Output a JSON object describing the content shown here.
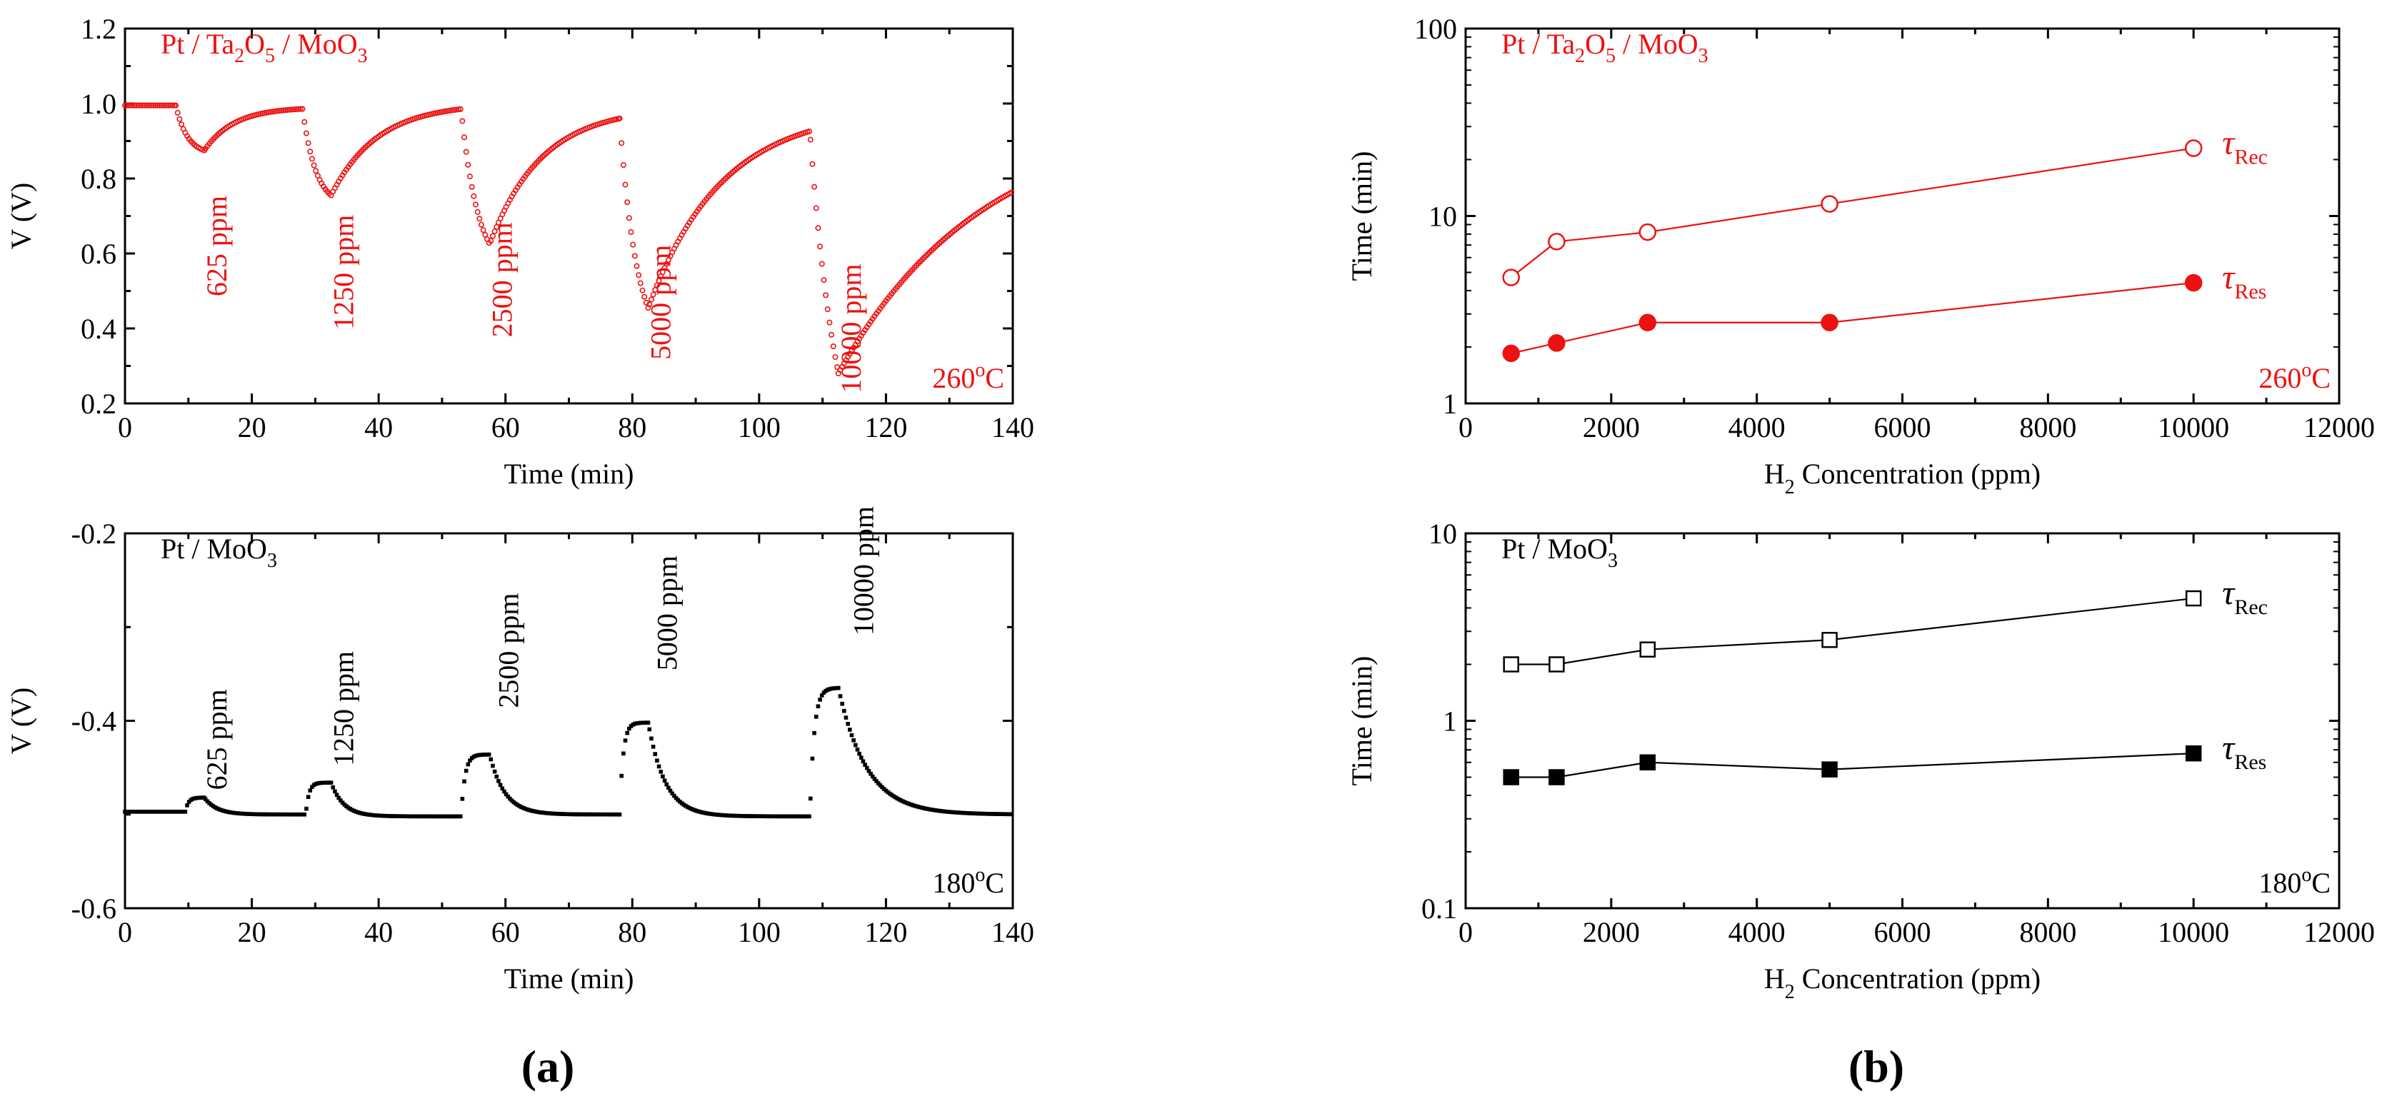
{
  "figure": {
    "label_a": "a",
    "label_b": "b"
  },
  "colors": {
    "red": "#ee1111",
    "black": "#000000"
  },
  "chart_data": [
    {
      "id": "a_top",
      "type": "scatter",
      "title_parts": [
        "Pt / Ta",
        "2",
        "O",
        "5",
        " / MoO",
        "3"
      ],
      "xlabel": "Time (min)",
      "ylabel": "V (V)",
      "xlim": [
        0,
        140
      ],
      "ylim": [
        0.2,
        1.2
      ],
      "xticks": [
        0,
        20,
        40,
        60,
        80,
        100,
        120,
        140
      ],
      "yticks": [
        0.2,
        0.4,
        0.6,
        0.8,
        1.0,
        1.2
      ],
      "ytick_labels": [
        "0.2",
        "0.4",
        "0.6",
        "0.8",
        "1.0",
        "1.2"
      ],
      "temperature": "260",
      "temperature_unit": "C",
      "deg": "o",
      "color": "red",
      "base_start": 0.995,
      "pulses": [
        {
          "label": "625 ppm",
          "t_on": 8,
          "t_off": 12.5,
          "v_min": 0.875,
          "v_base": 0.99,
          "tau_res": 1.85,
          "tau_rec": 4.7,
          "label_x": 16,
          "label_y": 0.62
        },
        {
          "label": "1250 ppm",
          "t_on": 28,
          "t_off": 32.5,
          "v_min": 0.755,
          "v_base": 1.0,
          "tau_res": 2.1,
          "tau_rec": 7.3,
          "label_x": 36,
          "label_y": 0.55
        },
        {
          "label": "2500 ppm",
          "t_on": 53,
          "t_off": 57.5,
          "v_min": 0.625,
          "v_base": 0.99,
          "tau_res": 2.7,
          "tau_rec": 8.2,
          "label_x": 61,
          "label_y": 0.53
        },
        {
          "label": "5000 ppm",
          "t_on": 78,
          "t_off": 82.5,
          "v_min": 0.455,
          "v_base": 0.985,
          "tau_res": 2.7,
          "tau_rec": 11.6,
          "label_x": 86,
          "label_y": 0.47
        },
        {
          "label": "10000 ppm",
          "t_on": 108,
          "t_off": 112.5,
          "v_min": 0.28,
          "v_base": 0.975,
          "tau_res": 4.4,
          "tau_rec": 23,
          "label_x": 116,
          "label_y": 0.4
        }
      ]
    },
    {
      "id": "a_bottom",
      "type": "scatter",
      "title_parts": [
        "Pt / MoO",
        "3"
      ],
      "xlabel": "Time (min)",
      "ylabel": "V (V)",
      "xlim": [
        0,
        140
      ],
      "ylim": [
        -0.6,
        -0.2
      ],
      "xticks": [
        0,
        20,
        40,
        60,
        80,
        100,
        120,
        140
      ],
      "yticks": [
        -0.6,
        -0.4,
        -0.2
      ],
      "ytick_labels": [
        "-0.6",
        "-0.4",
        "-0.2"
      ],
      "temperature": "180",
      "temperature_unit": "C",
      "deg": "o",
      "color": "black",
      "base_start": -0.497,
      "pulses": [
        {
          "label": "625 ppm",
          "t_on": 9.5,
          "t_off": 12.5,
          "v_max": -0.482,
          "v_base": -0.5,
          "tau_res": 0.5,
          "tau_rec": 2,
          "label_x": 16,
          "label_y": -0.42
        },
        {
          "label": "1250 ppm",
          "t_on": 28.5,
          "t_off": 32.5,
          "v_max": -0.466,
          "v_base": -0.502,
          "tau_res": 0.5,
          "tau_rec": 2,
          "label_x": 36,
          "label_y": -0.387
        },
        {
          "label": "2500 ppm",
          "t_on": 53,
          "t_off": 57.5,
          "v_max": -0.436,
          "v_base": -0.5,
          "tau_res": 0.6,
          "tau_rec": 2.4,
          "label_x": 62,
          "label_y": -0.325
        },
        {
          "label": "5000 ppm",
          "t_on": 78,
          "t_off": 82.5,
          "v_max": -0.402,
          "v_base": -0.502,
          "tau_res": 0.55,
          "tau_rec": 2.7,
          "label_x": 87,
          "label_y": -0.285
        },
        {
          "label": "10000 ppm",
          "t_on": 108,
          "t_off": 112.5,
          "v_max": -0.365,
          "v_base": -0.5,
          "tau_res": 0.67,
          "tau_rec": 4.5,
          "label_x": 118,
          "label_y": -0.24
        }
      ]
    },
    {
      "id": "b_top",
      "type": "line",
      "yscale": "log",
      "title_parts": [
        "Pt / Ta",
        "2",
        "O",
        "5",
        " / MoO",
        "3"
      ],
      "xlabel_parts": [
        "H",
        "2",
        " Concentration (ppm)"
      ],
      "ylabel": "Time (min)",
      "xlim": [
        0,
        12000
      ],
      "ylim": [
        1,
        100
      ],
      "xticks": [
        0,
        2000,
        4000,
        6000,
        8000,
        10000,
        12000
      ],
      "yticks": [
        1,
        10,
        100
      ],
      "ytick_labels": [
        "1",
        "10",
        "100"
      ],
      "temperature": "260",
      "temperature_unit": "C",
      "deg": "o",
      "color": "red",
      "marker": "circle",
      "x": [
        625,
        1250,
        2500,
        5000,
        10000
      ],
      "series": [
        {
          "name": "τ",
          "sub": "Rec",
          "filled": false,
          "values": [
            4.7,
            7.3,
            8.2,
            11.6,
            23
          ]
        },
        {
          "name": "τ",
          "sub": "Res",
          "filled": true,
          "values": [
            1.85,
            2.1,
            2.7,
            2.7,
            4.4
          ]
        }
      ]
    },
    {
      "id": "b_bottom",
      "type": "line",
      "yscale": "log",
      "title_parts": [
        "Pt / MoO",
        "3"
      ],
      "xlabel_parts": [
        "H",
        "2",
        " Concentration (ppm)"
      ],
      "ylabel": "Time (min)",
      "xlim": [
        0,
        12000
      ],
      "ylim": [
        0.1,
        10
      ],
      "xticks": [
        0,
        2000,
        4000,
        6000,
        8000,
        10000,
        12000
      ],
      "yticks": [
        0.1,
        1,
        10
      ],
      "ytick_labels": [
        "0.1",
        "1",
        "10"
      ],
      "temperature": "180",
      "temperature_unit": "C",
      "deg": "o",
      "color": "black",
      "marker": "square",
      "x": [
        625,
        1250,
        2500,
        5000,
        10000
      ],
      "series": [
        {
          "name": "τ",
          "sub": "Rec",
          "filled": false,
          "values": [
            2,
            2,
            2.4,
            2.7,
            4.5
          ]
        },
        {
          "name": "τ",
          "sub": "Res",
          "filled": true,
          "values": [
            0.5,
            0.5,
            0.6,
            0.55,
            0.67
          ]
        }
      ]
    }
  ]
}
